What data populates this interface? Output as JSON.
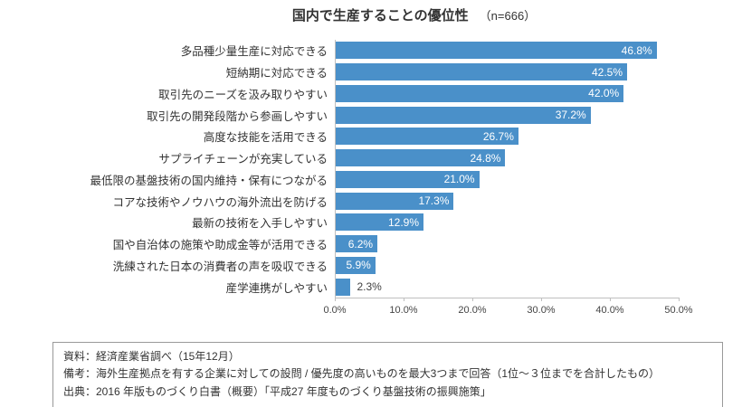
{
  "title": {
    "text": "国内で生産することの優位性",
    "sample_size": "（n=666）"
  },
  "chart_data": {
    "type": "bar",
    "orientation": "horizontal",
    "title": "国内で生産することの優位性 （n=666）",
    "categories": [
      "多品種少量生産に対応できる",
      "短納期に対応できる",
      "取引先のニーズを汲み取りやすい",
      "取引先の開発段階から参画しやすい",
      "高度な技能を活用できる",
      "サプライチェーンが充実している",
      "最低限の基盤技術の国内維持・保有につながる",
      "コアな技術やノウハウの海外流出を防げる",
      "最新の技術を入手しやすい",
      "国や自治体の施策や助成金等が活用できる",
      "洗練された日本の消費者の声を吸収できる",
      "産学連携がしやすい"
    ],
    "values": [
      46.8,
      42.5,
      42.0,
      37.2,
      26.7,
      24.8,
      21.0,
      17.3,
      12.9,
      6.2,
      5.9,
      2.3
    ],
    "value_suffix": "%",
    "xlabel": "",
    "ylabel": "",
    "xlim": [
      0,
      50
    ],
    "x_ticks": [
      "0.0%",
      "10.0%",
      "20.0%",
      "30.0%",
      "40.0%",
      "50.0%"
    ],
    "x_tick_values": [
      0,
      10,
      20,
      30,
      40,
      50
    ],
    "grid": false,
    "legend": false,
    "bar_color": "#4A90C9",
    "value_label_inside_color": "#ffffff",
    "value_label_outside_color": "#404040",
    "axis_line_color": "#bfbfbf"
  },
  "footer": {
    "lines": [
      "資料：経済産業省調べ（15年12月）",
      "備考：海外生産拠点を有する企業に対しての設問 / 優先度の高いものを最大3つまで回答（1位～３位までを合計したもの）",
      "出典：2016 年版ものづくり白書（概要）「平成27 年度ものづくり基盤技術の振興施策」"
    ]
  }
}
